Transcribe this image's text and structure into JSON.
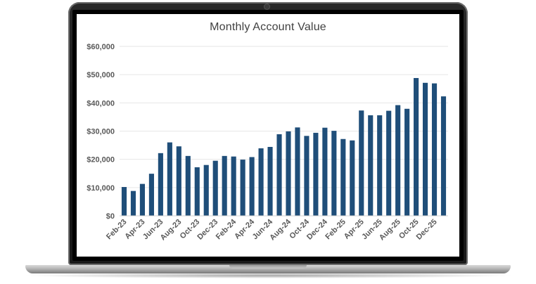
{
  "colors": {
    "bar": "#1f4e79",
    "grid": "#e6e6e6",
    "text": "#595959",
    "title": "#404040"
  },
  "chart_data": {
    "type": "bar",
    "title": "Monthly Account Value",
    "xlabel": "",
    "ylabel": "",
    "ylim": [
      0,
      60000
    ],
    "yticks": [
      {
        "value": 0,
        "label": "$0"
      },
      {
        "value": 10000,
        "label": "$10,000"
      },
      {
        "value": 20000,
        "label": "$20,000"
      },
      {
        "value": 30000,
        "label": "$30,000"
      },
      {
        "value": 40000,
        "label": "$40,000"
      },
      {
        "value": 50000,
        "label": "$50,000"
      },
      {
        "value": 60000,
        "label": "$60,000"
      }
    ],
    "grid": true,
    "legend": "none",
    "categories": [
      "Feb-23",
      "Mar-23",
      "Apr-23",
      "May-23",
      "Jun-23",
      "Jul-23",
      "Aug-23",
      "Sep-23",
      "Oct-23",
      "Nov-23",
      "Dec-23",
      "Jan-24",
      "Feb-24",
      "Mar-24",
      "Apr-24",
      "May-24",
      "Jun-24",
      "Jul-24",
      "Aug-24",
      "Sep-24",
      "Oct-24",
      "Nov-24",
      "Dec-24",
      "Jan-25",
      "Feb-25",
      "Mar-25",
      "Apr-25",
      "May-25",
      "Jun-25",
      "Jul-25",
      "Aug-25",
      "Sep-25",
      "Oct-25",
      "Nov-25",
      "Dec-25",
      "Jan-26"
    ],
    "xtick_labels": [
      "Feb-23",
      "Apr-23",
      "Jun-23",
      "Aug-23",
      "Oct-23",
      "Dec-23",
      "Feb-24",
      "Apr-24",
      "Jun-24",
      "Aug-24",
      "Oct-24",
      "Dec-24",
      "Feb-25",
      "Apr-25",
      "Jun-25",
      "Aug-25",
      "Oct-25",
      "Dec-25"
    ],
    "values": [
      10200,
      8800,
      11300,
      14900,
      22200,
      26000,
      24600,
      21200,
      17200,
      18000,
      19500,
      21200,
      21000,
      19900,
      20800,
      23900,
      24400,
      28900,
      29900,
      31300,
      28300,
      29400,
      31200,
      30100,
      27200,
      26700,
      37300,
      35600,
      35600,
      37200,
      39200,
      37900,
      48800,
      47100,
      46900,
      42300
    ]
  }
}
